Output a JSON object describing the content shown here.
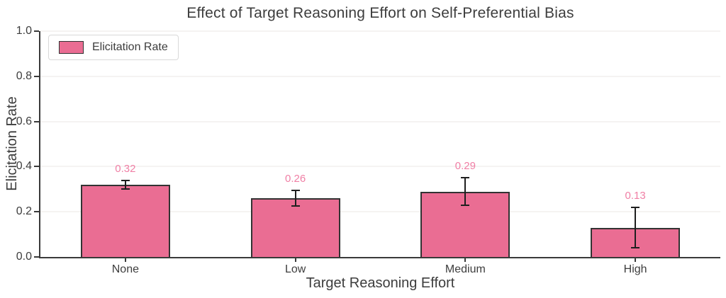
{
  "chart_data": {
    "type": "bar",
    "title": "Effect of Target Reasoning Effort on Self-Preferential Bias",
    "xlabel": "Target Reasoning Effort",
    "ylabel": "Elicitation Rate",
    "categories": [
      "None",
      "Low",
      "Medium",
      "High"
    ],
    "values": [
      0.32,
      0.26,
      0.29,
      0.13
    ],
    "error_bars": [
      0.02,
      0.035,
      0.06,
      0.09
    ],
    "value_labels": [
      "0.32",
      "0.26",
      "0.29",
      "0.13"
    ],
    "ylim": [
      0.0,
      1.0
    ],
    "yticks": [
      0.0,
      0.2,
      0.4,
      0.6,
      0.8,
      1.0
    ],
    "grid": "horizontal",
    "legend": {
      "position": "upper left",
      "entries": [
        {
          "label": "Elicitation Rate",
          "swatch_color": "#ea6d93"
        }
      ]
    },
    "colors": {
      "bar_fill": "#ea6d93",
      "bar_edge": "#333333",
      "error_bar": "#1f1f1f",
      "value_label": "#f07fa5",
      "grid": "#f5f3f2",
      "spine": "#3a3a3a",
      "text": "#3d3d3d"
    }
  }
}
